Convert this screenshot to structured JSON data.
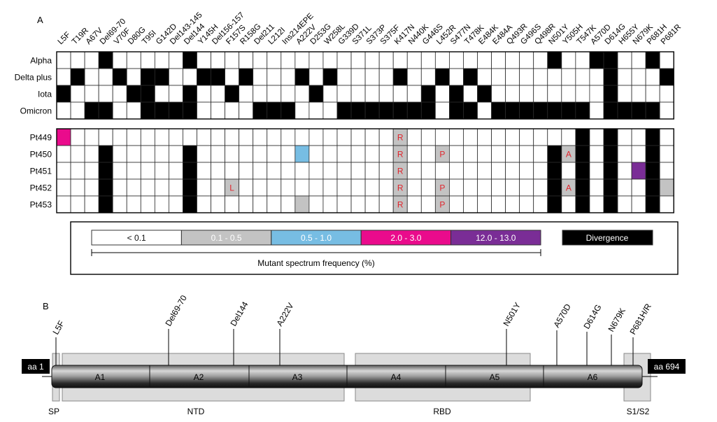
{
  "panel_a": {
    "label": "A",
    "mutations": [
      "L5F",
      "T19R",
      "A67V",
      "Del69-70",
      "V70F",
      "D80G",
      "T95I",
      "G142D",
      "Del143-145",
      "Del144",
      "Y145H",
      "Del156-157",
      "F157S",
      "R158G",
      "Del211",
      "L212I",
      "Ins214EPE",
      "A222V",
      "D253G",
      "W258L",
      "G339D",
      "S371L",
      "S373P",
      "S375F",
      "K417N",
      "N440K",
      "G446S",
      "L452R",
      "S477N",
      "T478K",
      "E484K",
      "E484A",
      "Q493R",
      "G496S",
      "Q498R",
      "N501Y",
      "Y505H",
      "T547K",
      "A570D",
      "D614G",
      "H655Y",
      "N679K",
      "P681H",
      "P681R"
    ],
    "variant_rows": [
      {
        "name": "Alpha",
        "marked": [
          3,
          9,
          35,
          38,
          39,
          42
        ]
      },
      {
        "name": "Delta plus",
        "marked": [
          1,
          4,
          6,
          7,
          10,
          11,
          13,
          17,
          19,
          24,
          27,
          29,
          39,
          43
        ]
      },
      {
        "name": "Iota",
        "marked": [
          0,
          5,
          6,
          9,
          12,
          18,
          26,
          28,
          30,
          39
        ]
      },
      {
        "name": "Omicron",
        "marked": [
          2,
          3,
          6,
          7,
          8,
          9,
          14,
          15,
          16,
          20,
          21,
          22,
          23,
          24,
          25,
          26,
          28,
          29,
          31,
          32,
          33,
          34,
          35,
          36,
          37,
          39,
          40,
          41,
          42
        ]
      }
    ],
    "patient_rows": [
      {
        "name": "Pt449",
        "cells": [
          {
            "col": 0,
            "bin": "2.0 - 3.0",
            "text": ""
          },
          {
            "col": 24,
            "bin": "0.1 - 0.5",
            "text": "R"
          }
        ],
        "divergence": [
          37,
          39,
          42
        ]
      },
      {
        "name": "Pt450",
        "cells": [
          {
            "col": 17,
            "bin": "0.5 - 1.0",
            "text": ""
          },
          {
            "col": 24,
            "bin": "0.1 - 0.5",
            "text": "R"
          },
          {
            "col": 27,
            "bin": "0.1 - 0.5",
            "text": "P"
          },
          {
            "col": 36,
            "bin": "0.1 - 0.5",
            "text": "A"
          }
        ],
        "divergence": [
          3,
          9,
          35,
          37,
          39,
          42
        ]
      },
      {
        "name": "Pt451",
        "cells": [
          {
            "col": 24,
            "bin": "0.1 - 0.5",
            "text": "R"
          },
          {
            "col": 41,
            "bin": "12.0 - 13.0",
            "text": ""
          }
        ],
        "divergence": [
          3,
          9,
          35,
          37,
          39,
          42
        ]
      },
      {
        "name": "Pt452",
        "cells": [
          {
            "col": 12,
            "bin": "0.1 - 0.5",
            "text": "L"
          },
          {
            "col": 24,
            "bin": "0.1 - 0.5",
            "text": "R"
          },
          {
            "col": 27,
            "bin": "0.1 - 0.5",
            "text": "P"
          },
          {
            "col": 36,
            "bin": "0.1 - 0.5",
            "text": "A"
          },
          {
            "col": 43,
            "bin": "0.1 - 0.5",
            "text": ""
          }
        ],
        "divergence": [
          3,
          9,
          35,
          37,
          39,
          42
        ]
      },
      {
        "name": "Pt453",
        "cells": [
          {
            "col": 17,
            "bin": "0.1 - 0.5",
            "text": ""
          },
          {
            "col": 24,
            "bin": "0.1 - 0.5",
            "text": "R"
          },
          {
            "col": 27,
            "bin": "0.1 - 0.5",
            "text": "P"
          }
        ],
        "divergence": [
          3,
          9,
          35,
          37,
          39,
          42
        ]
      }
    ],
    "legend": {
      "bins": [
        {
          "label": "< 0.1",
          "color": "#ffffff",
          "text_color": "#111111"
        },
        {
          "label": "0.1 - 0.5",
          "color": "#c3c3c3",
          "text_color": "#ffffff"
        },
        {
          "label": "0.5 - 1.0",
          "color": "#77bde3",
          "text_color": "#ffffff"
        },
        {
          "label": "2.0 - 3.0",
          "color": "#ea0b8c",
          "text_color": "#ffffff"
        },
        {
          "label": "12.0 - 13.0",
          "color": "#7a2d96",
          "text_color": "#ffffff"
        }
      ],
      "divergence_label": "Divergence",
      "divergence_color": "#000000",
      "axis_label": "Mutant spectrum frequency (%)"
    },
    "letter_color": "#e0242c"
  },
  "panel_b": {
    "label": "B",
    "start_label": "aa 1",
    "end_label": "aa 694",
    "segments": [
      "A1",
      "A2",
      "A3",
      "A4",
      "A5",
      "A6"
    ],
    "domains": [
      "SP",
      "NTD",
      "RBD",
      "S1/S2"
    ],
    "mutations": [
      "L5F",
      "Del69-70",
      "Del144",
      "A222V",
      "N501Y",
      "A570D",
      "D614G",
      "N679K",
      "P681H/R"
    ]
  }
}
